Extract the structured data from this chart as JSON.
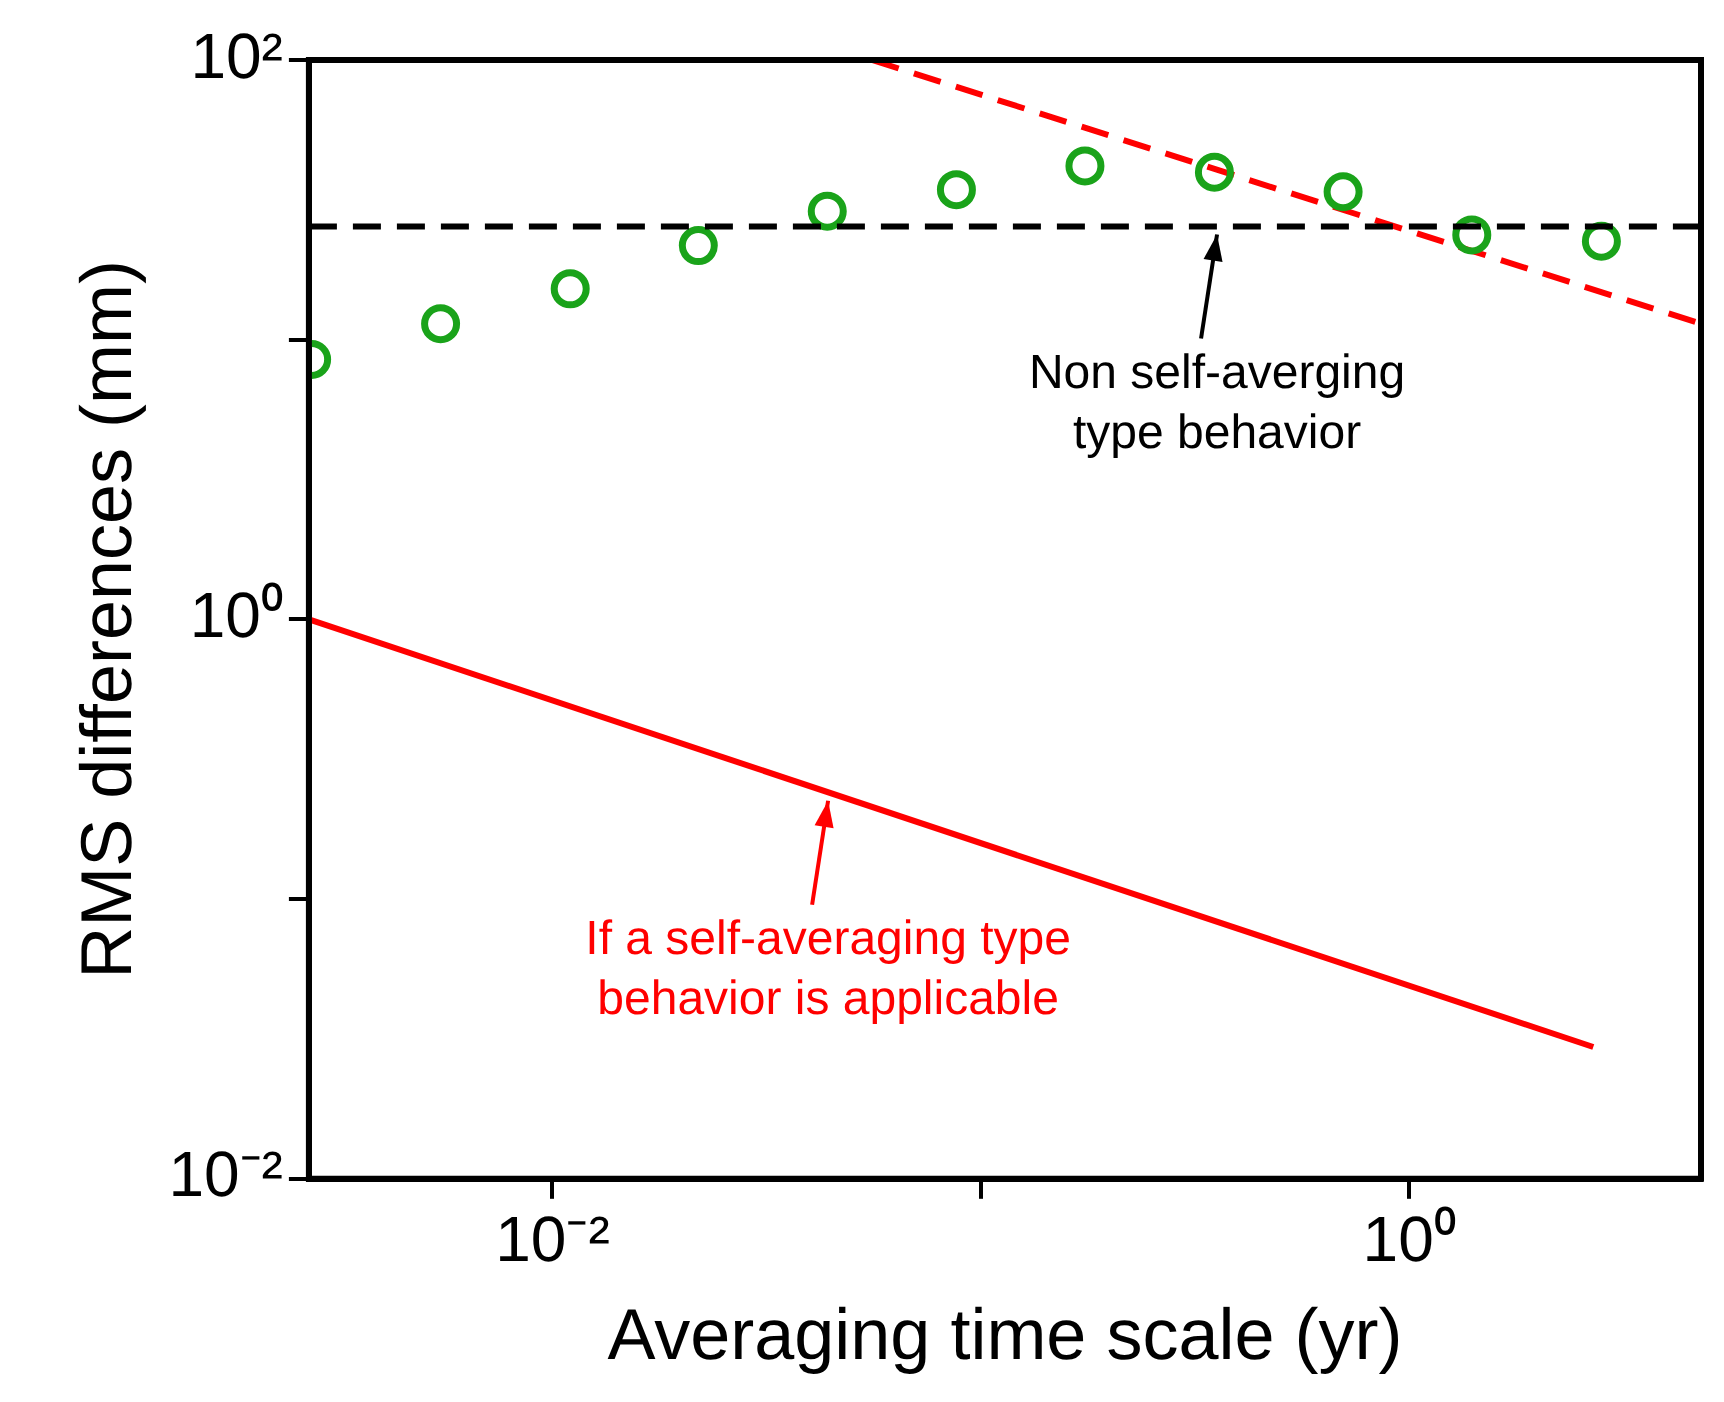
{
  "chart_data": {
    "type": "scatter",
    "xlabel": "Averaging time scale (yr)",
    "ylabel": "RMS differences (mm)",
    "log": "xy",
    "grid": false,
    "legend": false,
    "xlim": [
      0.0027,
      4.8
    ],
    "xticks": [
      {
        "value": 0.01,
        "label": "10⁻²"
      },
      {
        "value": 0.1,
        "label": null
      },
      {
        "value": 1,
        "label": "10⁰"
      }
    ],
    "ylim": [
      0.01,
      100
    ],
    "yticks": [
      {
        "value": 0.01,
        "label": "10⁻²"
      },
      {
        "value": 0.1,
        "label": null
      },
      {
        "value": 1,
        "label": "10⁰"
      },
      {
        "value": 10,
        "label": null
      },
      {
        "value": 100,
        "label": "10²"
      }
    ],
    "series": [
      {
        "marker": "circle",
        "color": "#1aa31a",
        "x": [
          0.00274,
          0.00548,
          0.011,
          0.0219,
          0.0438,
          0.0877,
          0.175,
          0.351,
          0.701,
          1.4,
          2.81
        ],
        "values": [
          8.5,
          11.4,
          15.2,
          21.7,
          28.8,
          34.4,
          41.8,
          39.7,
          33.8,
          23.7,
          22.5
        ]
      },
      {
        "type": "line",
        "marker": "none",
        "line_style": "dashed",
        "color": "#ff0000",
        "x": [
          0.0557,
          4.8
        ],
        "values": [
          100,
          11.4
        ]
      },
      {
        "type": "line",
        "marker": "none",
        "line_style": "solid",
        "color": "#ff0000",
        "x": [
          0.0027,
          2.69
        ],
        "values": [
          1,
          0.0296
        ]
      }
    ],
    "ref_lines": [
      {
        "axis": "y",
        "value": 25.4,
        "color": "#000000",
        "line_style": "dashed"
      }
    ],
    "annotations": [
      {
        "text": "Non self-averging\ntype behavior",
        "x": 0.356,
        "y": 25.4
      },
      {
        "text": "If a self-averaging type\nbehavior is applicable",
        "x": 0.044,
        "y": 0.24
      }
    ]
  }
}
